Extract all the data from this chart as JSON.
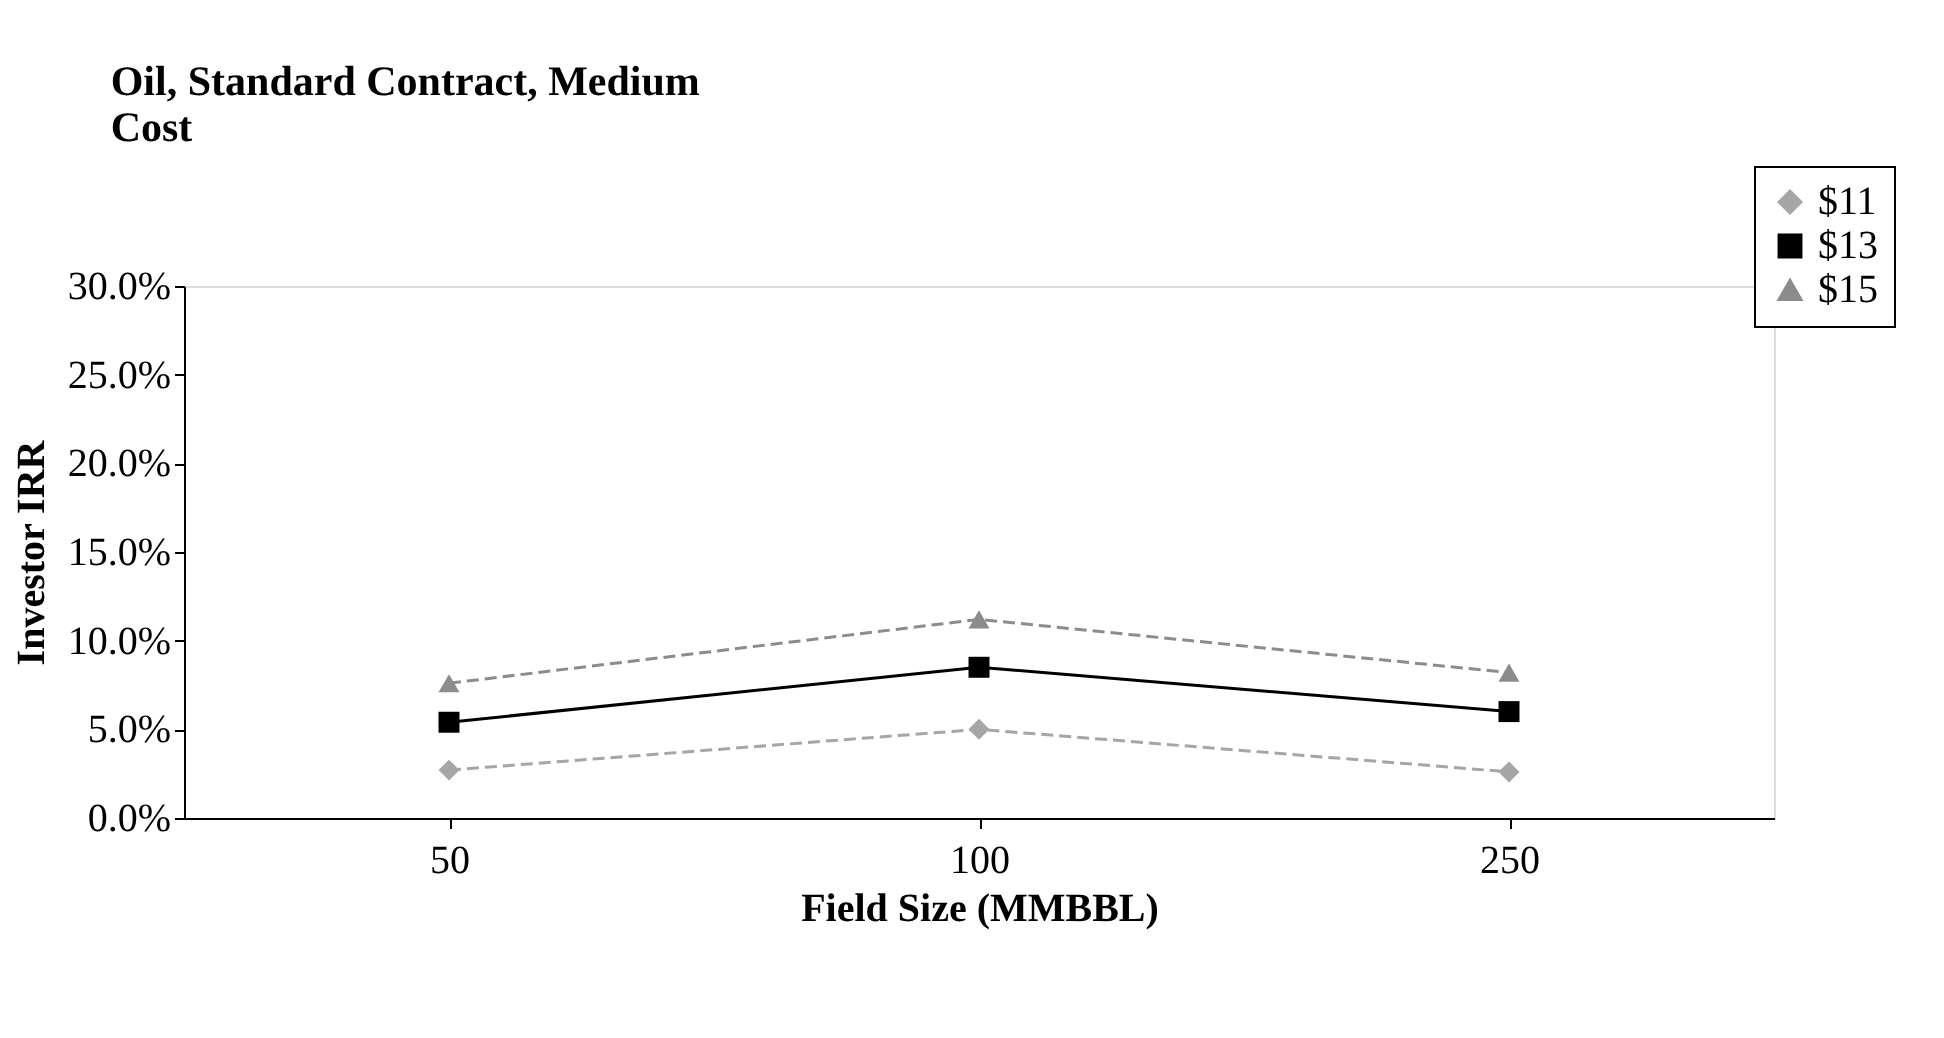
{
  "chart_data": {
    "type": "line",
    "title": "Oil, Standard Contract, Medium\nCost",
    "xlabel": "Field Size (MMBBL)",
    "ylabel": "Investor IRR",
    "categories": [
      "50",
      "100",
      "250"
    ],
    "series": [
      {
        "name": "$11",
        "color": "#a6a6a6",
        "values": [
          2.7,
          5.0,
          2.6
        ],
        "marker": "diamond",
        "line_style": "dashed"
      },
      {
        "name": "$13",
        "color": "#000000",
        "values": [
          5.4,
          8.5,
          6.0
        ],
        "marker": "square",
        "line_style": "solid"
      },
      {
        "name": "$15",
        "color": "#8c8c8c",
        "values": [
          7.6,
          11.2,
          8.2
        ],
        "marker": "triangle",
        "line_style": "dashed"
      }
    ],
    "ylim": [
      0,
      30
    ],
    "yticks": [
      {
        "value": 0,
        "label": "0.0%"
      },
      {
        "value": 5,
        "label": "5.0%"
      },
      {
        "value": 10,
        "label": "10.0%"
      },
      {
        "value": 15,
        "label": "15.0%"
      },
      {
        "value": 20,
        "label": "20.0%"
      },
      {
        "value": 25,
        "label": "25.0%"
      },
      {
        "value": 30,
        "label": "30.0%"
      }
    ],
    "grid": false,
    "legend": "top right"
  }
}
